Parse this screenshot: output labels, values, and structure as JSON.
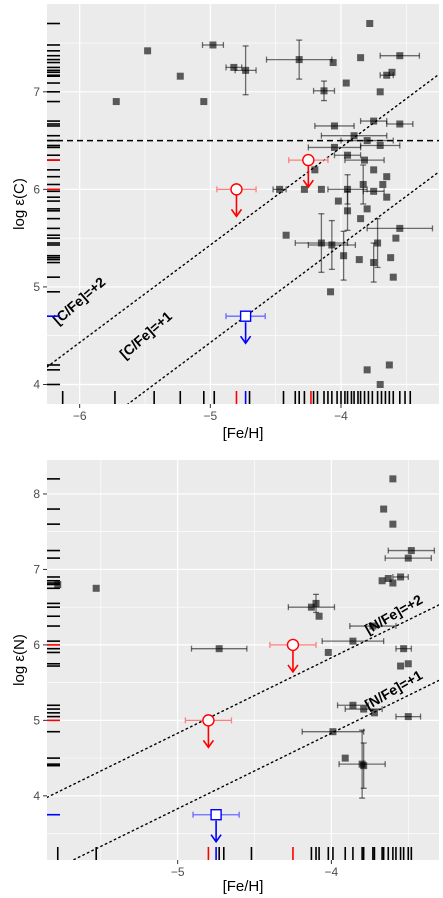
{
  "chart_data": [
    {
      "type": "scatter",
      "title": "",
      "xlabel": "[Fe/H]",
      "ylabel": "log ε(C)",
      "xlim": [
        -6.25,
        -3.25
      ],
      "ylim": [
        3.8,
        7.9
      ],
      "xticks": [
        -6,
        -5,
        -4
      ],
      "yticks": [
        4,
        5,
        6,
        7
      ],
      "xtick_labels": [
        "−6",
        "−5",
        "−4"
      ],
      "ytick_labels": [
        "4",
        "5",
        "6",
        "7"
      ],
      "grid": true,
      "hline": {
        "y": 6.5,
        "style": "dashed"
      },
      "reference_lines": [
        {
          "label": "[C/Fe]=+2",
          "intercept": 10.43,
          "label_at": [
            -5.98,
            4.82
          ],
          "label_rotation": 41
        },
        {
          "label": "[C/Fe]=+1",
          "intercept": 9.43,
          "label_at": [
            -5.47,
            4.47
          ],
          "label_rotation": 41
        }
      ],
      "series": [
        {
          "marker": "square",
          "color": "#000000",
          "points": [
            {
              "x": -5.72,
              "y": 6.9
            },
            {
              "x": -5.48,
              "y": 7.42
            },
            {
              "x": -5.23,
              "y": 7.16
            },
            {
              "x": -5.05,
              "y": 6.9
            },
            {
              "x": -4.98,
              "y": 7.48,
              "xerr": 0.08
            },
            {
              "x": -4.82,
              "y": 7.25,
              "xerr": 0.06
            },
            {
              "x": -4.73,
              "y": 7.22,
              "xerr": 0.08,
              "yerr": 0.25
            },
            {
              "x": -4.32,
              "y": 7.33,
              "xerr": 0.25,
              "yerr": 0.2
            },
            {
              "x": -4.13,
              "y": 7.01,
              "xerr": 0.08,
              "yerr": 0.1
            },
            {
              "x": -4.06,
              "y": 7.3
            },
            {
              "x": -3.96,
              "y": 7.09
            },
            {
              "x": -3.85,
              "y": 7.35
            },
            {
              "x": -3.78,
              "y": 7.7
            },
            {
              "x": -3.7,
              "y": 7.0
            },
            {
              "x": -3.65,
              "y": 7.17,
              "xerr": 0.05
            },
            {
              "x": -3.61,
              "y": 7.2
            },
            {
              "x": -3.55,
              "y": 7.37,
              "xerr": 0.15
            },
            {
              "x": -3.75,
              "y": 6.7,
              "xerr": 0.1
            },
            {
              "x": -3.55,
              "y": 6.67,
              "xerr": 0.1
            },
            {
              "x": -4.05,
              "y": 6.65,
              "xerr": 0.15
            },
            {
              "x": -3.9,
              "y": 6.55,
              "xerr": 0.25
            },
            {
              "x": -3.8,
              "y": 6.5,
              "xerr": 0.2
            },
            {
              "x": -3.7,
              "y": 6.45,
              "xerr": 0.15
            },
            {
              "x": -4.05,
              "y": 6.43,
              "xerr": 0.2
            },
            {
              "x": -3.95,
              "y": 6.35,
              "xerr": 0.1
            },
            {
              "x": -3.82,
              "y": 6.3,
              "xerr": 0.15
            },
            {
              "x": -4.2,
              "y": 6.2
            },
            {
              "x": -3.75,
              "y": 6.2
            },
            {
              "x": -3.65,
              "y": 6.13
            },
            {
              "x": -4.47,
              "y": 6.0,
              "xerr": 0.05
            },
            {
              "x": -4.28,
              "y": 6.0
            },
            {
              "x": -4.15,
              "y": 6.0
            },
            {
              "x": -3.95,
              "y": 6.0,
              "xerr": 0.15,
              "yerr": 0.15
            },
            {
              "x": -3.83,
              "y": 6.05,
              "yerr": 0.2
            },
            {
              "x": -3.75,
              "y": 5.98,
              "xerr": 0.08
            },
            {
              "x": -3.65,
              "y": 5.92
            },
            {
              "x": -3.68,
              "y": 6.05
            },
            {
              "x": -4.02,
              "y": 5.88
            },
            {
              "x": -3.95,
              "y": 5.78,
              "yerr": 0.2
            },
            {
              "x": -3.85,
              "y": 5.7
            },
            {
              "x": -3.8,
              "y": 5.8
            },
            {
              "x": -3.55,
              "y": 5.6,
              "xerr": 0.25
            },
            {
              "x": -3.58,
              "y": 5.5
            },
            {
              "x": -4.42,
              "y": 5.53
            },
            {
              "x": -4.15,
              "y": 5.45,
              "xerr": 0.2,
              "yerr": 0.3
            },
            {
              "x": -4.07,
              "y": 5.43,
              "xerr": 0.18,
              "yerr": 0.25
            },
            {
              "x": -3.98,
              "y": 5.32,
              "yerr": 0.25
            },
            {
              "x": -3.86,
              "y": 5.28
            },
            {
              "x": -3.75,
              "y": 5.25,
              "yerr": 0.2
            },
            {
              "x": -3.72,
              "y": 5.45,
              "yerr": 0.25
            },
            {
              "x": -3.62,
              "y": 5.3
            },
            {
              "x": -3.6,
              "y": 5.1
            },
            {
              "x": -4.08,
              "y": 4.95
            },
            {
              "x": -3.8,
              "y": 4.15
            },
            {
              "x": -3.7,
              "y": 4.0
            },
            {
              "x": -3.63,
              "y": 4.2
            }
          ]
        },
        {
          "marker": "open-circle",
          "color": "#ff0000",
          "upper_limit": true,
          "points": [
            {
              "x": -4.8,
              "y": 6.0,
              "xerr": 0.15
            },
            {
              "x": -4.25,
              "y": 6.3,
              "xerr": 0.15
            }
          ]
        },
        {
          "marker": "open-square",
          "color": "#0000ff",
          "upper_limit": true,
          "points": [
            {
              "x": -4.73,
              "y": 4.7,
              "xerr": 0.15
            }
          ]
        }
      ],
      "rug_x": {
        "black": [
          -6.13,
          -5.73,
          -5.43,
          -5.23,
          -5.05,
          -4.97,
          -4.7,
          -4.44,
          -4.35,
          -4.32,
          -4.28,
          -4.21,
          -4.18,
          -4.13,
          -4.1,
          -4.07,
          -4.03,
          -4.0,
          -3.97,
          -3.95,
          -3.92,
          -3.9,
          -3.87,
          -3.85,
          -3.82,
          -3.79,
          -3.76,
          -3.72,
          -3.69,
          -3.66,
          -3.63,
          -3.6,
          -3.55,
          -3.51,
          -3.47
        ],
        "red": [
          -4.8,
          -4.23
        ],
        "blue": [
          -4.73
        ]
      },
      "rug_y": {
        "black": [
          7.7,
          7.48,
          7.42,
          7.37,
          7.33,
          7.3,
          7.25,
          7.22,
          7.2,
          7.17,
          7.16,
          7.09,
          7.0,
          6.9,
          6.7,
          6.67,
          6.65,
          6.55,
          6.5,
          6.45,
          6.43,
          6.35,
          6.3,
          6.2,
          6.13,
          6.05,
          5.98,
          5.92,
          5.88,
          5.8,
          5.78,
          5.7,
          5.6,
          5.53,
          5.5,
          5.45,
          5.43,
          5.32,
          5.3,
          5.28,
          5.25,
          5.1,
          4.95,
          4.2,
          4.15,
          4.0
        ],
        "red": [
          6.3,
          6.0
        ],
        "blue": [
          4.7
        ]
      }
    },
    {
      "type": "scatter",
      "title": "",
      "xlabel": "[Fe/H]",
      "ylabel": "log ε(N)",
      "xlim": [
        -5.85,
        -3.3
      ],
      "ylim": [
        3.15,
        8.45
      ],
      "xticks": [
        -5,
        -4
      ],
      "yticks": [
        4,
        5,
        6,
        7,
        8
      ],
      "xtick_labels": [
        "−5",
        "−4"
      ],
      "ytick_labels": [
        "4",
        "5",
        "6",
        "7",
        "8"
      ],
      "grid": true,
      "reference_lines": [
        {
          "label": "[N/Fe]=+2",
          "intercept": 9.83,
          "label_at": [
            -3.58,
            6.35
          ],
          "label_rotation": 30
        },
        {
          "label": "[N/Fe]=+1",
          "intercept": 8.83,
          "label_at": [
            -3.58,
            5.35
          ],
          "label_rotation": 30
        }
      ],
      "series": [
        {
          "marker": "square",
          "color": "#000000",
          "points": [
            {
              "x": -5.78,
              "y": 6.8
            },
            {
              "x": -5.53,
              "y": 6.75
            },
            {
              "x": -4.73,
              "y": 5.95,
              "xerr": 0.18
            },
            {
              "x": -4.13,
              "y": 6.5,
              "xerr": 0.15
            },
            {
              "x": -4.1,
              "y": 6.55,
              "yerr": 0.12
            },
            {
              "x": -4.08,
              "y": 6.38
            },
            {
              "x": -4.02,
              "y": 5.9
            },
            {
              "x": -3.86,
              "y": 6.05,
              "xerr": 0.2
            },
            {
              "x": -3.73,
              "y": 6.25,
              "xerr": 0.15
            },
            {
              "x": -3.67,
              "y": 6.85
            },
            {
              "x": -3.63,
              "y": 6.88
            },
            {
              "x": -3.6,
              "y": 6.82
            },
            {
              "x": -3.55,
              "y": 6.9,
              "xerr": 0.05
            },
            {
              "x": -3.5,
              "y": 7.15,
              "xerr": 0.15
            },
            {
              "x": -3.48,
              "y": 7.25,
              "xerr": 0.15
            },
            {
              "x": -3.6,
              "y": 7.6
            },
            {
              "x": -3.66,
              "y": 7.8
            },
            {
              "x": -3.6,
              "y": 8.2
            },
            {
              "x": -3.55,
              "y": 5.72
            },
            {
              "x": -3.5,
              "y": 5.75
            },
            {
              "x": -3.53,
              "y": 5.95,
              "xerr": 0.05
            },
            {
              "x": -3.5,
              "y": 5.05,
              "xerr": 0.08
            },
            {
              "x": -3.86,
              "y": 5.2,
              "xerr": 0.1
            },
            {
              "x": -3.79,
              "y": 5.15,
              "xerr": 0.12
            },
            {
              "x": -3.72,
              "y": 5.1
            },
            {
              "x": -3.99,
              "y": 4.85,
              "xerr": 0.2
            },
            {
              "x": -3.91,
              "y": 4.5
            },
            {
              "x": -3.8,
              "y": 4.42,
              "xerr": 0.15,
              "yerr": 0.45
            },
            {
              "x": -3.79,
              "y": 4.4,
              "yerr": 0.3
            }
          ]
        },
        {
          "marker": "open-circle",
          "color": "#ff0000",
          "upper_limit": true,
          "points": [
            {
              "x": -4.8,
              "y": 5.0,
              "xerr": 0.15
            },
            {
              "x": -4.25,
              "y": 6.0,
              "xerr": 0.15
            }
          ]
        },
        {
          "marker": "open-square",
          "color": "#0000ff",
          "upper_limit": true,
          "points": [
            {
              "x": -4.75,
              "y": 3.75,
              "xerr": 0.15
            }
          ]
        }
      ],
      "rug_x": {
        "black": [
          -5.78,
          -5.53,
          -4.73,
          -4.7,
          -4.52,
          -4.13,
          -4.1,
          -4.08,
          -4.02,
          -3.99,
          -3.91,
          -3.86,
          -3.8,
          -3.79,
          -3.73,
          -3.72,
          -3.67,
          -3.66,
          -3.63,
          -3.6,
          -3.58,
          -3.55,
          -3.53,
          -3.5,
          -3.48
        ],
        "red": [
          -4.8,
          -4.25
        ],
        "blue": [
          -4.75
        ]
      },
      "rug_y": {
        "black": [
          8.2,
          7.8,
          7.6,
          7.25,
          7.15,
          6.9,
          6.85,
          6.82,
          6.8,
          6.75,
          6.55,
          6.5,
          6.38,
          6.25,
          6.05,
          5.95,
          5.9,
          5.75,
          5.72,
          5.2,
          5.15,
          5.1,
          5.05,
          4.85,
          4.5,
          4.42,
          4.4
        ],
        "red": [
          6.0,
          5.0
        ],
        "blue": [
          3.75
        ]
      }
    }
  ]
}
